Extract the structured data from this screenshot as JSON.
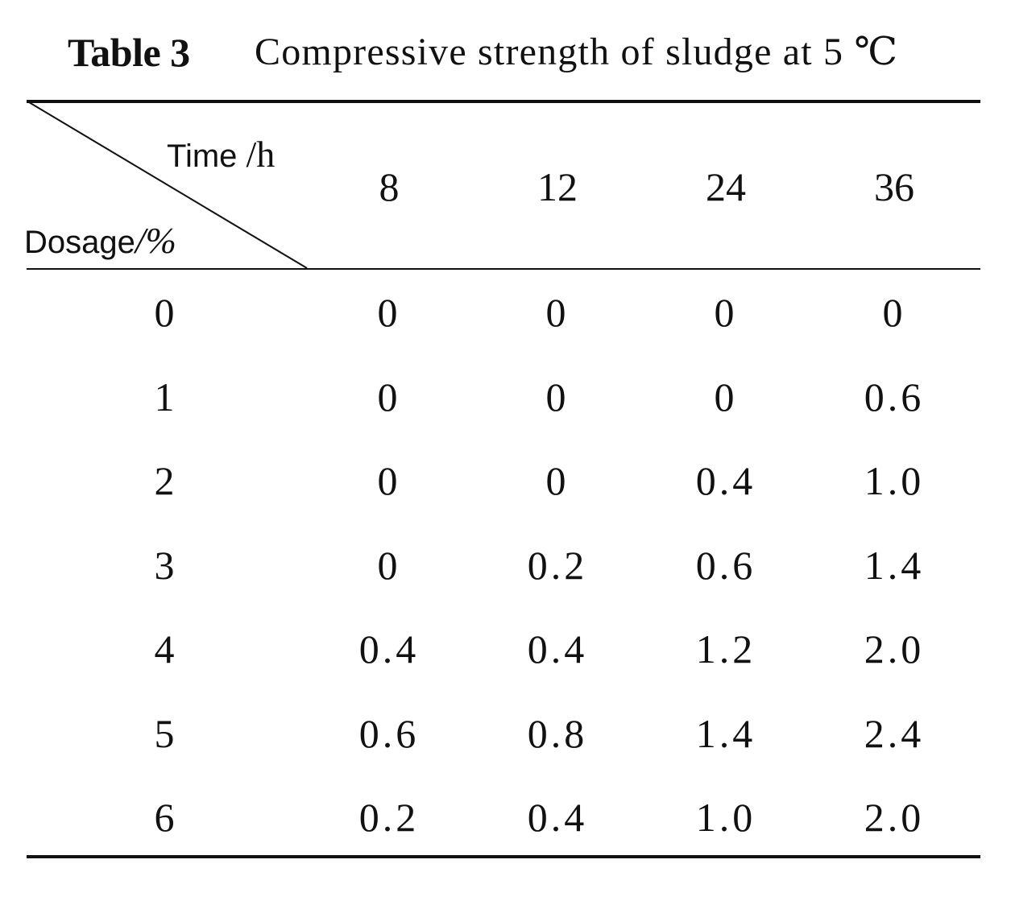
{
  "caption": {
    "label": "Table 3",
    "text": "Compressive strength of sludge at 5 ℃"
  },
  "header": {
    "time_label": "Time",
    "time_unit": "/h",
    "dosage_label": "Dosage",
    "dosage_unit": "/%",
    "columns": [
      "8",
      "12",
      "24",
      "36"
    ]
  },
  "rows": [
    {
      "dosage": "0",
      "values": [
        "0",
        "0",
        "0",
        "0"
      ]
    },
    {
      "dosage": "1",
      "values": [
        "0",
        "0",
        "0",
        "0.6"
      ]
    },
    {
      "dosage": "2",
      "values": [
        "0",
        "0",
        "0.4",
        "1.0"
      ]
    },
    {
      "dosage": "3",
      "values": [
        "0",
        "0.2",
        "0.6",
        "1.4"
      ]
    },
    {
      "dosage": "4",
      "values": [
        "0.4",
        "0.4",
        "1.2",
        "2.0"
      ]
    },
    {
      "dosage": "5",
      "values": [
        "0.6",
        "0.8",
        "1.4",
        "2.4"
      ]
    },
    {
      "dosage": "6",
      "values": [
        "0.2",
        "0.4",
        "1.0",
        "2.0"
      ]
    }
  ]
}
